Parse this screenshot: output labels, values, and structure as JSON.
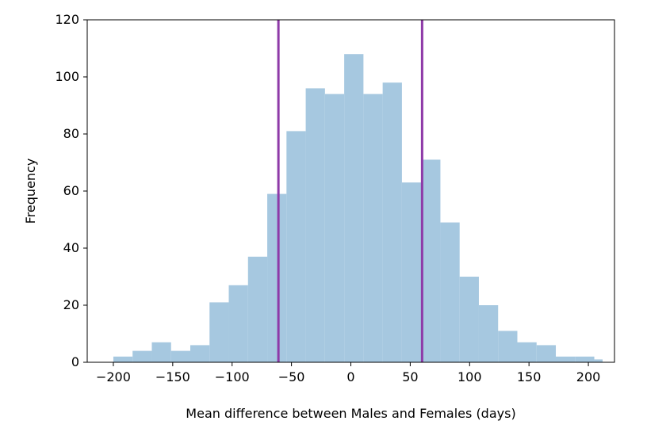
{
  "chart_data": {
    "type": "bar",
    "subtype": "histogram",
    "title": "",
    "xlabel": "Mean difference between Males and Females (days)",
    "ylabel": "Frequency",
    "xlim": [
      -222,
      222
    ],
    "ylim": [
      0,
      120
    ],
    "bar_color": "#a6c8e0",
    "line_color": "#8e3aa8",
    "grid": false,
    "x_ticks": [
      -200,
      -150,
      -100,
      -50,
      0,
      50,
      100,
      150,
      200
    ],
    "x_tick_labels": [
      "−200",
      "−150",
      "−100",
      "−50",
      "0",
      "50",
      "100",
      "150",
      "200"
    ],
    "y_ticks": [
      0,
      20,
      40,
      60,
      80,
      100,
      120
    ],
    "y_tick_labels": [
      "0",
      "20",
      "40",
      "60",
      "80",
      "100",
      "120"
    ],
    "bins": [
      {
        "x0": -200.0,
        "x1": -183.8,
        "count": 2
      },
      {
        "x0": -183.8,
        "x1": -167.6,
        "count": 4
      },
      {
        "x0": -167.6,
        "x1": -151.4,
        "count": 7
      },
      {
        "x0": -151.4,
        "x1": -135.2,
        "count": 4
      },
      {
        "x0": -135.2,
        "x1": -119.0,
        "count": 6
      },
      {
        "x0": -119.0,
        "x1": -102.8,
        "count": 21
      },
      {
        "x0": -102.8,
        "x1": -86.6,
        "count": 27
      },
      {
        "x0": -86.6,
        "x1": -70.4,
        "count": 37
      },
      {
        "x0": -70.4,
        "x1": -54.2,
        "count": 59
      },
      {
        "x0": -54.2,
        "x1": -38.0,
        "count": 81
      },
      {
        "x0": -38.0,
        "x1": -21.8,
        "count": 96
      },
      {
        "x0": -21.8,
        "x1": -5.6,
        "count": 94
      },
      {
        "x0": -5.6,
        "x1": 10.6,
        "count": 108
      },
      {
        "x0": 10.6,
        "x1": 26.8,
        "count": 94
      },
      {
        "x0": 26.8,
        "x1": 43.0,
        "count": 98
      },
      {
        "x0": 43.0,
        "x1": 59.2,
        "count": 63
      },
      {
        "x0": 59.2,
        "x1": 75.4,
        "count": 71
      },
      {
        "x0": 75.4,
        "x1": 91.6,
        "count": 49
      },
      {
        "x0": 91.6,
        "x1": 107.8,
        "count": 30
      },
      {
        "x0": 107.8,
        "x1": 124.0,
        "count": 20
      },
      {
        "x0": 124.0,
        "x1": 140.2,
        "count": 11
      },
      {
        "x0": 140.2,
        "x1": 156.4,
        "count": 7
      },
      {
        "x0": 156.4,
        "x1": 172.6,
        "count": 6
      },
      {
        "x0": 172.6,
        "x1": 188.8,
        "count": 2
      },
      {
        "x0": 188.8,
        "x1": 205.0,
        "count": 2
      },
      {
        "x0": 205.0,
        "x1": 212.0,
        "count": 1
      }
    ],
    "vlines": [
      -61,
      60
    ]
  }
}
